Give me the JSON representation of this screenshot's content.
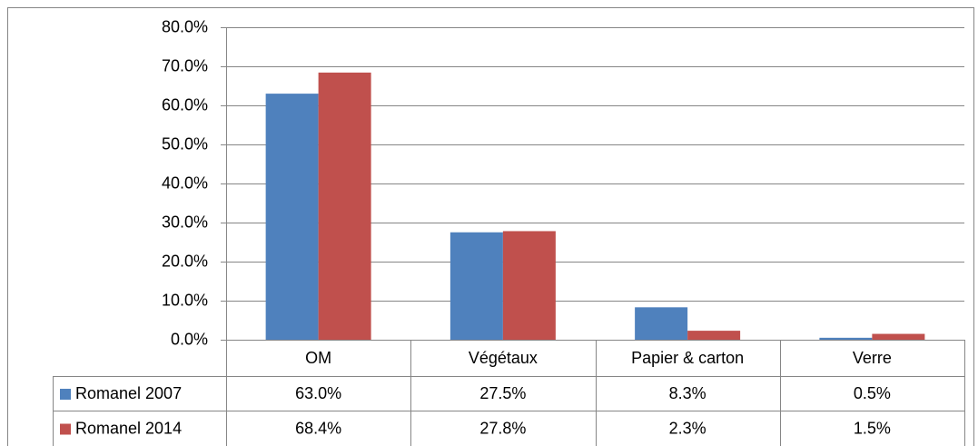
{
  "chart_data": {
    "type": "bar",
    "categories": [
      "OM",
      "Végétaux",
      "Papier & carton",
      "Verre"
    ],
    "series": [
      {
        "name": "Romanel 2007",
        "color": "#4f81bd",
        "values": [
          63.0,
          27.5,
          8.3,
          0.5
        ],
        "value_labels": [
          "63.0%",
          "27.5%",
          "8.3%",
          "0.5%"
        ]
      },
      {
        "name": "Romanel 2014",
        "color": "#c0504d",
        "values": [
          68.4,
          27.8,
          2.3,
          1.5
        ],
        "value_labels": [
          "68.4%",
          "27.8%",
          "2.3%",
          "1.5%"
        ]
      }
    ],
    "ylim": [
      0,
      80
    ],
    "yticks": [
      {
        "value": 0,
        "label": "0.0%"
      },
      {
        "value": 10,
        "label": "10.0%"
      },
      {
        "value": 20,
        "label": "20.0%"
      },
      {
        "value": 30,
        "label": "30.0%"
      },
      {
        "value": 40,
        "label": "40.0%"
      },
      {
        "value": 50,
        "label": "50.0%"
      },
      {
        "value": 60,
        "label": "60.0%"
      },
      {
        "value": 70,
        "label": "70.0%"
      },
      {
        "value": 80,
        "label": "80.0%"
      }
    ],
    "grid": true
  }
}
